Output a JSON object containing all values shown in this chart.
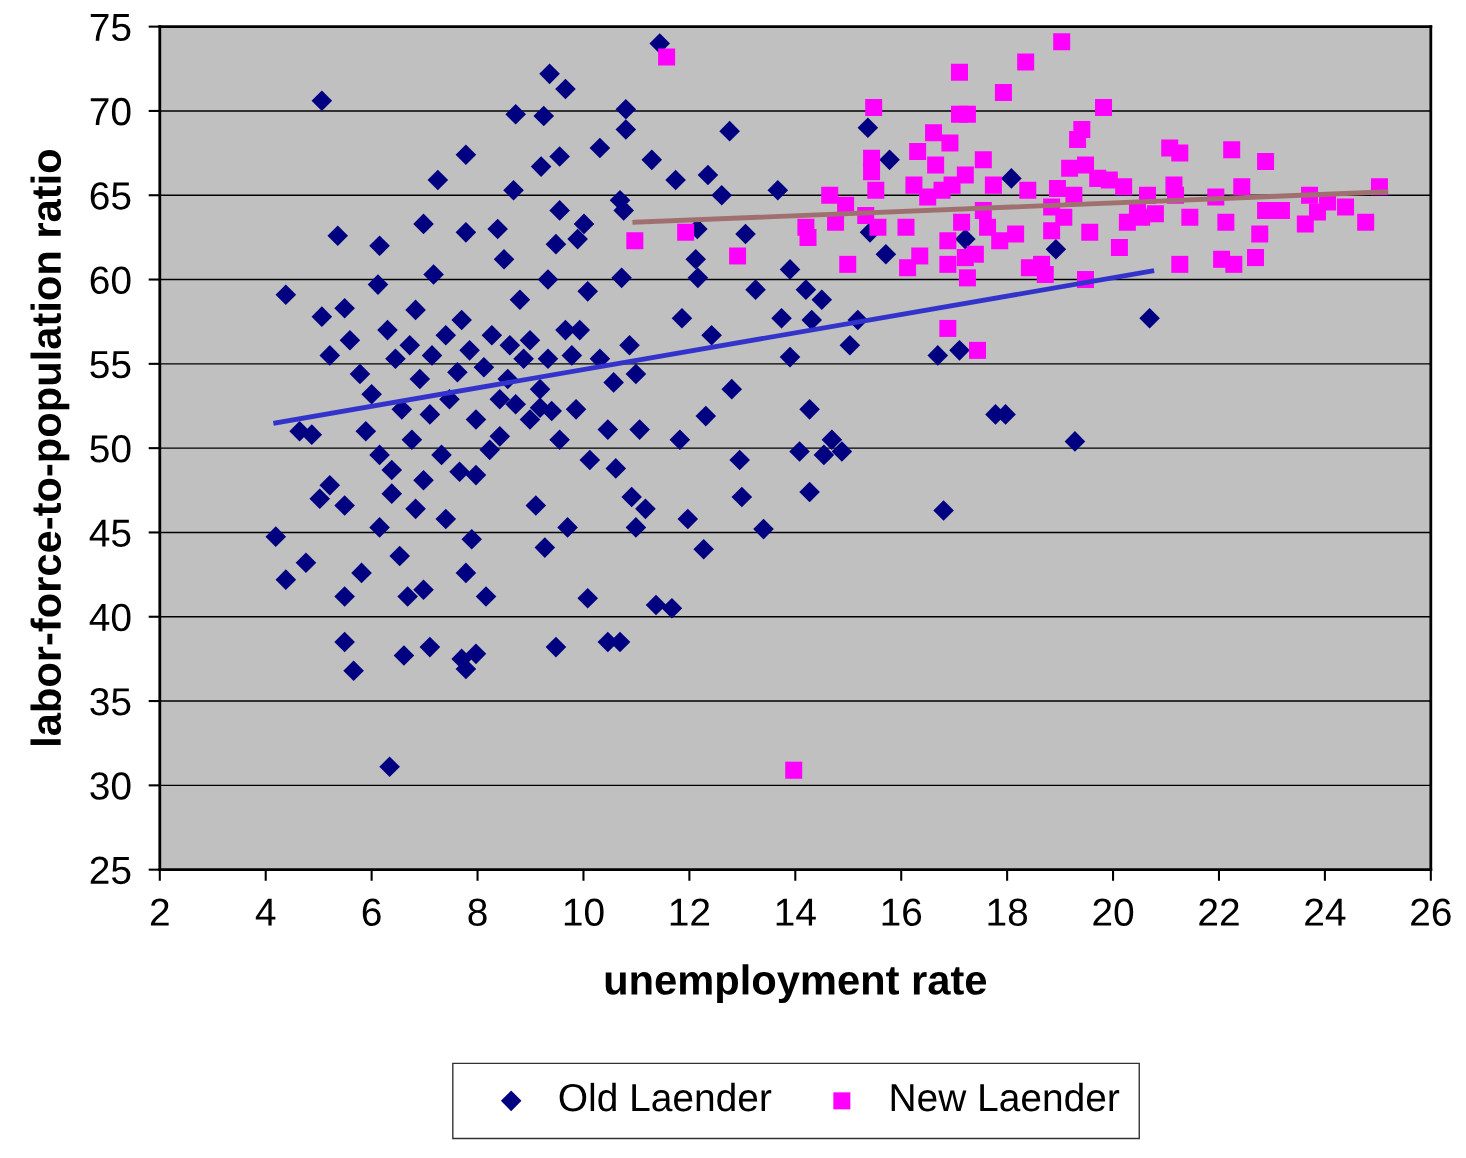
{
  "chart_data": {
    "type": "scatter",
    "xlabel": "unemployment rate",
    "ylabel": "labor-force-to-population ratio",
    "xlim": [
      2,
      26
    ],
    "xticks": [
      2,
      4,
      6,
      8,
      10,
      12,
      14,
      16,
      18,
      20,
      22,
      24,
      26
    ],
    "ylim": [
      25,
      75
    ],
    "yticks": [
      25,
      30,
      35,
      40,
      45,
      50,
      55,
      60,
      65,
      70,
      75
    ],
    "grid": "y",
    "legend": "bottom",
    "series": [
      {
        "name": "Old Laender",
        "color": "#000080",
        "marker": "diamond",
        "x": [
          4.19,
          4.38,
          4.38,
          4.76,
          4.64,
          4.87,
          5.06,
          5.06,
          5.02,
          5.21,
          5.36,
          5.49,
          5.49,
          5.49,
          5.49,
          5.66,
          5.81,
          6.15,
          6.12,
          6.15,
          6.15,
          6.34,
          6.38,
          6.53,
          6.61,
          6.68,
          6.83,
          6.83,
          6.98,
          7.1,
          7.25,
          6.98,
          7.17,
          7.14,
          7.32,
          7.4,
          7.62,
          7.78,
          7.78,
          7.7,
          7.78,
          7.97,
          8.16,
          7.78,
          7.89,
          7.97,
          8.23,
          8.42,
          8.38,
          8.5,
          8.61,
          8.72,
          8.68,
          8.8,
          8.99,
          9.1,
          9.25,
          9.36,
          9.66,
          9.2,
          9.55,
          9.55,
          9.33,
          9.48,
          9.27,
          9.48,
          9.7,
          9.89,
          10.01,
          9.93,
          10.08,
          10.12,
          10.08,
          10.31,
          10.46,
          10.69,
          10.69,
          10.76,
          10.8,
          10.8,
          10.72,
          10.87,
          10.91,
          10.99,
          11.06,
          11.17,
          11.29,
          11.44,
          11.37,
          11.67,
          11.74,
          11.86,
          11.82,
          12.15,
          12.12,
          12.16,
          11.97,
          12.27,
          12.31,
          12.35,
          12.42,
          12.61,
          12.76,
          12.8,
          12.95,
          12.99,
          13.06,
          13.25,
          13.4,
          13.67,
          13.74,
          13.9,
          13.9,
          14.08,
          14.2,
          14.27,
          14.27,
          14.31,
          14.5,
          14.54,
          14.69,
          14.88,
          15.03,
          15.18,
          15.37,
          15.41,
          15.78,
          15.71,
          16.69,
          16.8,
          17.1,
          17.21,
          17.78,
          17.97,
          18.08,
          18.92,
          19.28,
          20.69,
          5.21,
          5.59,
          5.78,
          6.0,
          5.89,
          6.3,
          6.45,
          6.57,
          6.72,
          6.76,
          6.91,
          7.1,
          7.4,
          7.47,
          7.7,
          7.85,
          7.97,
          8.12,
          8.27,
          8.42,
          8.57,
          8.72,
          8.87,
          8.99,
          9.18,
          9.33,
          9.4,
          9.55,
          9.66,
          9.78,
          9.86,
          10.31,
          10.46,
          10.57,
          10.61,
          10.99,
          7.66,
          6.98,
          6.38,
          9.18
        ],
        "values": [
          44.75,
          42.2,
          59.1,
          43.2,
          51.0,
          50.8,
          70.6,
          57.8,
          47.0,
          47.8,
          62.6,
          58.3,
          46.6,
          41.2,
          38.5,
          36.8,
          42.6,
          62.0,
          59.7,
          45.3,
          49.6,
          31.1,
          47.3,
          43.6,
          37.7,
          41.2,
          58.2,
          46.4,
          41.6,
          38.2,
          65.9,
          63.3,
          60.3,
          55.5,
          49.6,
          45.8,
          54.5,
          67.4,
          62.8,
          37.5,
          36.9,
          37.8,
          41.2,
          42.6,
          44.6,
          48.4,
          49.9,
          52.9,
          63.0,
          61.2,
          56.1,
          69.8,
          65.3,
          58.8,
          51.7,
          46.6,
          69.7,
          72.2,
          71.3,
          66.7,
          64.1,
          67.3,
          60.0,
          62.1,
          44.1,
          38.2,
          45.3,
          62.4,
          63.3,
          57.0,
          59.3,
          49.3,
          41.1,
          67.8,
          38.5,
          38.5,
          64.7,
          64.1,
          70.1,
          68.9,
          60.1,
          56.1,
          47.1,
          45.3,
          51.1,
          46.4,
          67.1,
          74.0,
          40.7,
          40.5,
          65.9,
          57.7,
          50.5,
          63.0,
          61.2,
          60.1,
          45.8,
          44.0,
          51.9,
          66.2,
          56.7,
          65.0,
          68.8,
          53.5,
          49.3,
          47.1,
          62.7,
          59.4,
          45.2,
          65.3,
          57.7,
          55.4,
          60.6,
          49.8,
          59.4,
          52.3,
          47.4,
          57.6,
          58.8,
          49.6,
          50.5,
          49.8,
          56.1,
          57.6,
          69.0,
          62.8,
          67.1,
          61.5,
          55.5,
          46.3,
          55.8,
          62.4,
          52.0,
          52.0,
          66.0,
          61.8,
          50.4,
          57.7,
          55.5,
          56.4,
          54.4,
          53.2,
          51.0,
          57.0,
          55.3,
          52.3,
          56.1,
          50.5,
          54.1,
          52.0,
          56.7,
          52.9,
          57.6,
          55.8,
          51.7,
          54.8,
          56.7,
          50.7,
          54.1,
          52.6,
          55.3,
          56.4,
          53.5,
          55.3,
          52.2,
          50.5,
          57.0,
          55.5,
          52.3,
          55.3,
          51.1,
          53.9,
          48.8,
          54.4,
          48.6,
          48.1,
          48.7,
          52.4
        ]
      },
      {
        "name": "New Laender",
        "color": "#ff00ff",
        "marker": "square",
        "x": [
          10.97,
          11.57,
          11.93,
          12.91,
          13.97,
          14.2,
          14.24,
          14.65,
          14.76,
          14.95,
          14.99,
          15.33,
          15.48,
          15.44,
          15.44,
          15.52,
          15.56,
          16.09,
          16.12,
          16.24,
          16.31,
          16.35,
          16.5,
          16.61,
          16.65,
          16.77,
          16.92,
          16.88,
          16.88,
          16.88,
          16.96,
          17.1,
          17.1,
          17.21,
          17.14,
          17.21,
          17.25,
          17.25,
          17.4,
          17.44,
          17.55,
          17.55,
          17.63,
          17.74,
          17.86,
          17.93,
          18.16,
          18.35,
          18.39,
          18.42,
          18.65,
          18.72,
          18.84,
          18.84,
          18.95,
          19.03,
          19.07,
          19.18,
          19.26,
          19.33,
          19.41,
          19.48,
          19.48,
          19.56,
          19.71,
          19.82,
          19.93,
          20.12,
          20.2,
          20.27,
          20.46,
          20.54,
          20.65,
          20.8,
          21.07,
          21.15,
          21.18,
          21.26,
          21.26,
          21.45,
          21.94,
          22.05,
          22.13,
          22.24,
          22.28,
          22.43,
          22.69,
          22.77,
          22.88,
          22.88,
          23.18,
          23.63,
          23.71,
          23.86,
          24.05,
          24.39,
          24.77,
          25.03
        ],
        "values": [
          62.3,
          73.2,
          62.8,
          61.4,
          30.9,
          63.1,
          62.5,
          65.0,
          63.4,
          64.4,
          60.9,
          63.8,
          70.2,
          67.2,
          66.4,
          65.3,
          63.1,
          63.1,
          60.7,
          65.6,
          67.6,
          61.4,
          64.9,
          68.7,
          66.8,
          65.3,
          68.1,
          62.3,
          60.9,
          57.1,
          65.6,
          72.3,
          69.8,
          66.2,
          63.4,
          61.3,
          60.1,
          69.8,
          61.5,
          55.8,
          67.1,
          64.1,
          63.1,
          65.6,
          62.3,
          71.1,
          62.7,
          72.9,
          65.3,
          60.7,
          60.9,
          60.3,
          64.3,
          62.9,
          65.4,
          74.1,
          63.7,
          66.6,
          65.0,
          68.3,
          68.9,
          66.8,
          60.0,
          62.8,
          66.0,
          70.2,
          65.9,
          61.9,
          65.5,
          63.4,
          64.1,
          63.7,
          65.0,
          63.9,
          67.8,
          65.6,
          65.0,
          67.5,
          60.9,
          63.7,
          64.9,
          61.2,
          63.4,
          67.7,
          60.9,
          65.5,
          61.3,
          62.7,
          67.0,
          64.1,
          64.1,
          63.3,
          65.0,
          64.0,
          64.6,
          64.3,
          63.4,
          65.5
        ]
      },
      {
        "type": "line",
        "color": "#3333cc",
        "x": [
          4.19,
          20.73
        ],
        "values": [
          51.5,
          60.5
        ]
      },
      {
        "type": "line",
        "color": "#a07070",
        "x": [
          10.97,
          25.15
        ],
        "values": [
          63.4,
          65.2
        ]
      }
    ]
  }
}
